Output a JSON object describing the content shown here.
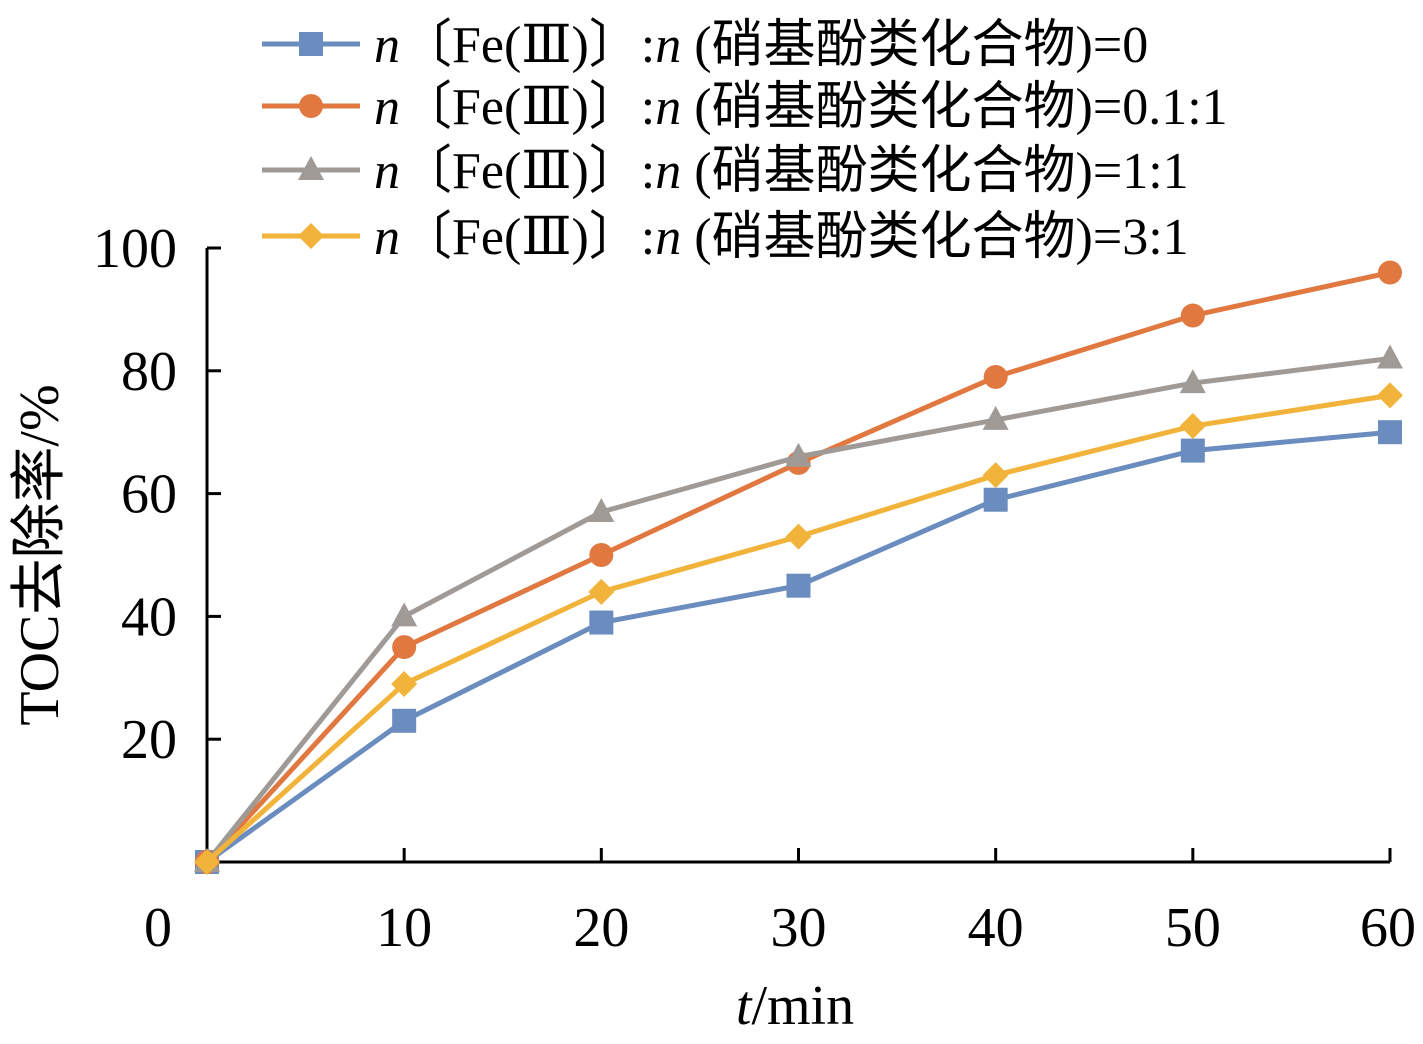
{
  "chart_data": {
    "type": "line",
    "x": [
      0,
      10,
      20,
      30,
      40,
      50,
      60
    ],
    "xlim": [
      0,
      60
    ],
    "ylim": [
      0,
      100
    ],
    "x_ticks": [
      "0",
      "10",
      "20",
      "30",
      "40",
      "50",
      "60"
    ],
    "y_ticks": [
      "20",
      "40",
      "60",
      "80",
      "100"
    ],
    "xlabel": {
      "italic": "t",
      "rest": "/min"
    },
    "ylabel": "TOC去除率/%",
    "grid": false,
    "legend_position": "top-right",
    "series": [
      {
        "name": "n〔Fe(Ⅲ)〕:n (硝基酚类化合物)=0",
        "legend_prefix": "〔Fe(Ⅲ)〕:",
        "legend_suffix": "(硝基酚类化合物)=0",
        "color": "#6a8cbf",
        "marker": "square",
        "values": [
          0,
          23,
          39,
          45,
          59,
          67,
          70
        ]
      },
      {
        "name": "n〔Fe(Ⅲ)〕:n (硝基酚类化合物)=0.1:1",
        "legend_prefix": "〔Fe(Ⅲ)〕:",
        "legend_suffix": "(硝基酚类化合物)=0.1:1",
        "color": "#e07840",
        "marker": "circle",
        "values": [
          0,
          35,
          50,
          65,
          79,
          89,
          96
        ]
      },
      {
        "name": "n〔Fe(Ⅲ)〕:n (硝基酚类化合物)=1:1",
        "legend_prefix": "〔Fe(Ⅲ)〕:",
        "legend_suffix": "(硝基酚类化合物)=1:1",
        "color": "#a09a96",
        "marker": "triangle",
        "values": [
          0,
          40,
          57,
          66,
          72,
          78,
          82
        ]
      },
      {
        "name": "n〔Fe(Ⅲ)〕:n (硝基酚类化合物)=3:1",
        "legend_prefix": "〔Fe(Ⅲ)〕:",
        "legend_suffix": "(硝基酚类化合物)=3:1",
        "color": "#f2b33a",
        "marker": "diamond",
        "values": [
          0,
          29,
          44,
          53,
          63,
          71,
          76
        ]
      }
    ]
  }
}
